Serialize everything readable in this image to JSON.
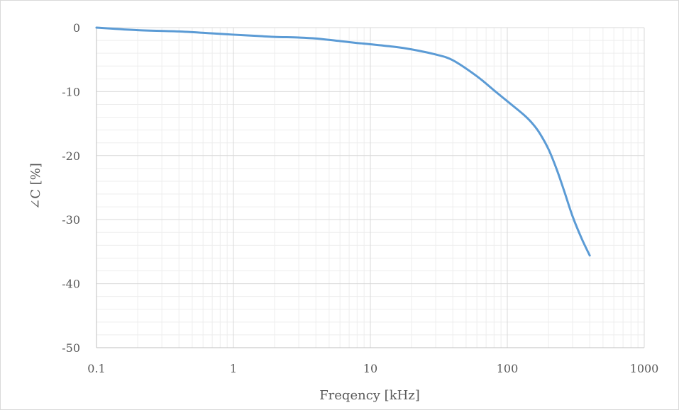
{
  "chart_data": {
    "type": "line",
    "title": "",
    "xlabel": "Freqency [kHz]",
    "ylabel": "∠C [%]",
    "x_scale": "log",
    "xlim": [
      0.1,
      1000
    ],
    "ylim": [
      -50,
      0
    ],
    "x_ticks": [
      "0.1",
      "1",
      "10",
      "100",
      "1000"
    ],
    "y_ticks": [
      "0",
      "-10",
      "-20",
      "-30",
      "-40",
      "-50"
    ],
    "grid": true,
    "legend": "none",
    "series": [
      {
        "color": "#5b9bd5",
        "x": [
          0.1,
          0.2,
          0.4,
          0.7,
          1,
          1.5,
          2,
          3,
          4,
          6,
          8,
          10,
          15,
          20,
          30,
          40,
          60,
          80,
          100,
          130,
          150,
          170,
          200,
          230,
          260,
          300,
          350,
          400
        ],
        "y": [
          0,
          -0.4,
          -0.6,
          -0.9,
          -1.1,
          -1.3,
          -1.45,
          -1.55,
          -1.7,
          -2.1,
          -2.4,
          -2.6,
          -3.0,
          -3.4,
          -4.2,
          -5.1,
          -7.6,
          -9.8,
          -11.5,
          -13.5,
          -14.8,
          -16.3,
          -19.0,
          -22.2,
          -25.5,
          -29.5,
          -33.0,
          -35.6
        ]
      }
    ]
  }
}
